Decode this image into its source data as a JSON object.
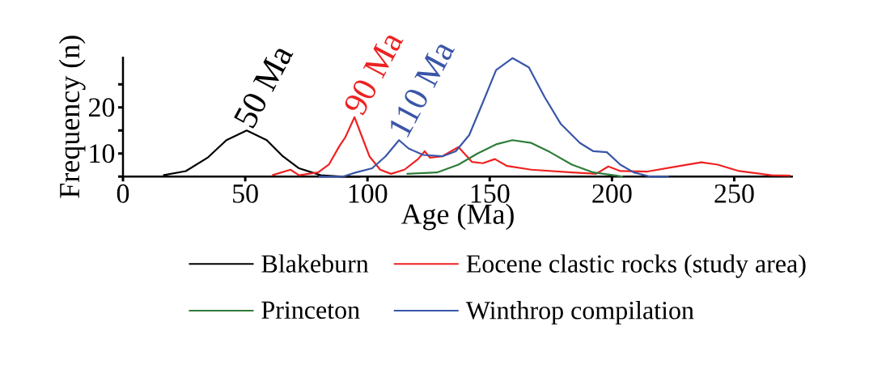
{
  "chart_data": {
    "type": "line",
    "xlabel": "Age (Ma)",
    "ylabel": "Frequency (n)",
    "xlim": [
      0,
      274
    ],
    "ylim": [
      5,
      31
    ],
    "xticks": [
      0,
      50,
      100,
      150,
      200,
      250
    ],
    "yticks": [
      {
        "value": 5,
        "label": null
      },
      10,
      {
        "value": 15,
        "label": null
      },
      20,
      {
        "value": 25,
        "label": null
      }
    ],
    "legend": "bottom",
    "marker": "none",
    "line_style": "solid",
    "grid": false,
    "annotations": [
      {
        "text": "50 Ma",
        "x": 50,
        "y": 15
      },
      {
        "text": "90 Ma",
        "x": 95,
        "y": 17.9
      },
      {
        "text": "110 Ma",
        "x": 113,
        "y": 12.9
      }
    ],
    "series": [
      {
        "name": "Blakeburn",
        "color": "#000000",
        "x": [
          16.4,
          25.7,
          34.6,
          42.3,
          50.6,
          58.8,
          65.4,
          72,
          80.9,
          90,
          97
        ],
        "values": [
          5.3,
          6.2,
          9.1,
          12.9,
          15,
          12.9,
          9.4,
          6.8,
          5.3,
          5,
          5
        ]
      },
      {
        "name": "Eocene clastic rocks (study area)",
        "color": "#ee2222",
        "x": [
          61,
          68.5,
          72,
          79.8,
          84.2,
          88.6,
          90.9,
          94.7,
          97.5,
          100.8,
          105.2,
          109.6,
          115.1,
          120.7,
          123.4,
          125.6,
          130.6,
          137.2,
          142.7,
          147.2,
          152.1,
          157.1,
          167,
          183.6,
          193.5,
          198.5,
          203.4,
          214.5,
          227.7,
          236.6,
          243.2,
          252,
          265.2,
          273
        ],
        "values": [
          5.3,
          6.5,
          5.3,
          5.9,
          7.6,
          11.7,
          13.5,
          17.9,
          14,
          9.4,
          6.5,
          5.6,
          6.5,
          8.8,
          10.5,
          9.1,
          9.4,
          11.4,
          8.2,
          7.9,
          8.8,
          7.3,
          6.5,
          5.9,
          5.6,
          7.2,
          6.2,
          6.1,
          7.3,
          8.1,
          7.6,
          6.2,
          5.3,
          5.2
        ]
      },
      {
        "name": "Princeton",
        "color": "#2e7d3a",
        "x": [
          116,
          128.4,
          137.2,
          145,
          152.6,
          159.3,
          167,
          174.7,
          183.6,
          192.4,
          204.5
        ],
        "values": [
          5.6,
          5.9,
          7.6,
          10,
          12,
          12.9,
          12.3,
          10.3,
          7.6,
          5.9,
          5
        ]
      },
      {
        "name": "Winthrop compilation",
        "color": "#3a56a8",
        "x": [
          80,
          90,
          95.3,
          101.9,
          107.4,
          112.9,
          116.8,
          122.8,
          130.6,
          136.1,
          141.6,
          147.2,
          152.6,
          159.3,
          166,
          172.5,
          179.1,
          186.9,
          192.4,
          197.9,
          203.4,
          208.9,
          215.6,
          223.3
        ],
        "values": [
          5,
          5,
          5.9,
          6.8,
          9.4,
          12.9,
          11.1,
          9.7,
          9.4,
          10.5,
          14,
          21.1,
          28.1,
          30.7,
          28.7,
          22.2,
          16.4,
          12.3,
          10.5,
          10.3,
          7.6,
          5.9,
          5,
          5
        ]
      }
    ]
  }
}
